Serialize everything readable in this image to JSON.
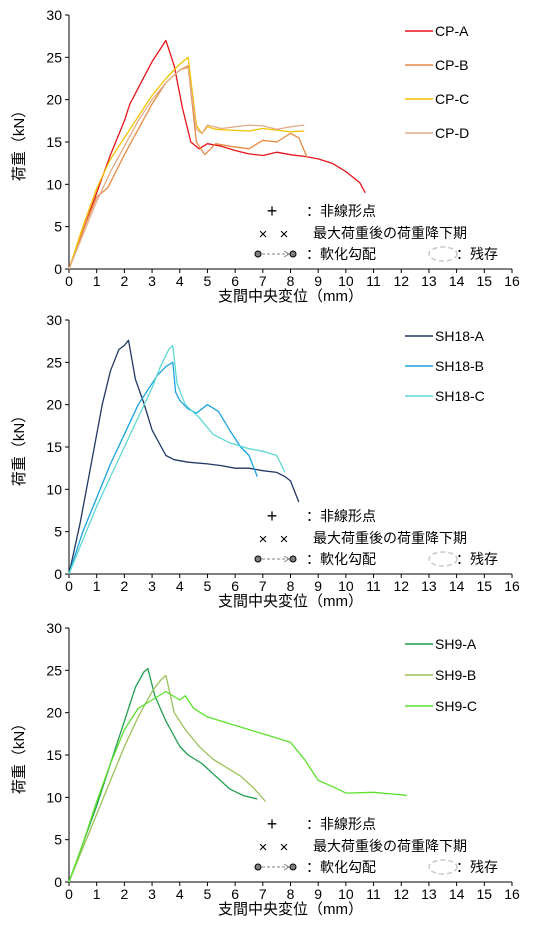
{
  "chart_data": [
    {
      "type": "line",
      "xlabel": "支間中央変位（mm）",
      "ylabel": "荷重（kN）",
      "xlim": [
        0,
        16
      ],
      "ylim": [
        0,
        30
      ],
      "xticks": [
        "0",
        "1",
        "2",
        "3",
        "4",
        "5",
        "6",
        "7",
        "8",
        "9",
        "10",
        "11",
        "12",
        "13",
        "14",
        "15",
        "16"
      ],
      "yticks": [
        "0",
        "5",
        "10",
        "15",
        "20",
        "25",
        "30"
      ],
      "grid": false,
      "legend_position": "top-right",
      "notes": {
        "nonlinear": "：非線形点",
        "max_load": "最大荷重後の荷重降下期",
        "softening": "：軟化勾配",
        "residual": "：残存"
      },
      "series": [
        {
          "name": "CP-A",
          "color": "#e8141b",
          "x": [
            0,
            0.5,
            1,
            1.5,
            2,
            2.2,
            2.6,
            3,
            3.3,
            3.5,
            3.8,
            4.1,
            4.4,
            4.7,
            5,
            5.5,
            6,
            6.5,
            7,
            7.5,
            8,
            8.5,
            9,
            9.5,
            10,
            10.5,
            10.7
          ],
          "y": [
            0,
            4.5,
            9,
            13.5,
            17.5,
            19.5,
            22,
            24.5,
            26,
            27,
            24,
            19,
            15,
            14.2,
            14.8,
            14.5,
            14,
            13.6,
            13.4,
            13.8,
            13.5,
            13.3,
            13,
            12.5,
            11.5,
            10.2,
            9
          ]
        },
        {
          "name": "CP-B",
          "color": "#e68a45",
          "x": [
            0,
            0.5,
            1,
            1.4,
            2,
            2.5,
            3,
            3.5,
            4,
            4.3,
            4.6,
            4.9,
            5.3,
            5.8,
            6.5,
            7,
            7.5,
            8,
            8.3,
            8.6
          ],
          "y": [
            0,
            4.5,
            8.5,
            9.6,
            13.5,
            16.5,
            19.5,
            22,
            23.5,
            24,
            15,
            13.5,
            14.8,
            14.5,
            14.2,
            15.2,
            15,
            16,
            15.5,
            13.2
          ]
        },
        {
          "name": "CP-C",
          "color": "#f2c200",
          "x": [
            0,
            0.5,
            1,
            1.5,
            2,
            2.5,
            3,
            3.5,
            4,
            4.3,
            4.6,
            4.8,
            5,
            5.3,
            5.8,
            6.5,
            7,
            7.5,
            8,
            8.5
          ],
          "y": [
            0,
            5,
            9.5,
            13,
            15.5,
            18,
            20.5,
            22.5,
            24.2,
            25,
            17,
            16,
            16.8,
            16.5,
            16.4,
            16.3,
            16.6,
            16.4,
            16.2,
            16.3
          ]
        },
        {
          "name": "CP-D",
          "color": "#e2ac8a",
          "x": [
            0,
            0.5,
            1,
            1.5,
            2,
            2.5,
            3,
            3.5,
            4,
            4.3,
            4.6,
            4.8,
            5,
            5.5,
            6,
            6.5,
            7,
            7.5,
            8,
            8.5
          ],
          "y": [
            0,
            4,
            8,
            11.5,
            14.5,
            17.5,
            20,
            22,
            23.5,
            23.8,
            16.5,
            16,
            17,
            16.6,
            16.8,
            17,
            16.9,
            16.5,
            16.8,
            17
          ]
        },
        {
          "name": "SH18-A",
          "color": "#1f3864",
          "x": [
            0,
            0.4,
            0.8,
            1.2,
            1.5,
            1.8,
            2,
            2.15,
            2.4,
            2.7,
            3,
            3.5,
            3.8,
            4.3,
            5,
            5.5,
            6,
            6.5,
            7,
            7.5,
            7.8,
            8,
            8.3
          ],
          "y": [
            0,
            6,
            13,
            20,
            24,
            26.5,
            27,
            27.6,
            23,
            20.2,
            17,
            14,
            13.5,
            13.2,
            13,
            12.8,
            12.5,
            12.5,
            12.2,
            12,
            11.5,
            11,
            8.5
          ]
        },
        {
          "name": "SH18-B",
          "color": "#1aa3e0",
          "x": [
            0,
            0.5,
            1,
            1.5,
            2,
            2.5,
            2.9,
            3.2,
            3.5,
            3.75,
            3.85,
            4,
            4.3,
            4.6,
            5,
            5.4,
            5.8,
            6.2,
            6.5,
            6.8
          ],
          "y": [
            0,
            5,
            9,
            13,
            16.5,
            20,
            22,
            23.5,
            24.5,
            25,
            21.5,
            20.5,
            19.5,
            19,
            20,
            19.2,
            17,
            15,
            14,
            11.5
          ]
        },
        {
          "name": "SH18-C",
          "color": "#5fd9d2",
          "x": [
            0,
            0.5,
            1,
            1.5,
            2,
            2.5,
            3,
            3.3,
            3.6,
            3.75,
            3.9,
            4.2,
            4.7,
            5.2,
            5.8,
            6.5,
            7,
            7.5,
            7.8
          ],
          "y": [
            0,
            4,
            8,
            11.5,
            15,
            18.5,
            22,
            24.5,
            26.5,
            27,
            22.5,
            20,
            18.5,
            16.5,
            15.5,
            14.8,
            14.5,
            14,
            12
          ]
        },
        {
          "name": "SH9-A",
          "color": "#1e9e4f",
          "x": [
            0,
            0.5,
            1,
            1.5,
            2,
            2.4,
            2.7,
            2.85,
            3.1,
            3.5,
            4,
            4.3,
            4.8,
            5.3,
            5.8,
            6.3,
            6.8
          ],
          "y": [
            0,
            4.5,
            9,
            14,
            19,
            23,
            24.8,
            25.2,
            22,
            19,
            16,
            15,
            14,
            12.5,
            11,
            10.2,
            9.8
          ]
        },
        {
          "name": "SH9-B",
          "color": "#9bc25a",
          "x": [
            0,
            0.5,
            1,
            1.5,
            2,
            2.5,
            3,
            3.3,
            3.5,
            3.8,
            4.2,
            4.7,
            5.2,
            5.7,
            6.2,
            6.7,
            7.1
          ],
          "y": [
            0,
            4,
            8,
            12,
            16,
            19.5,
            22.5,
            23.8,
            24.4,
            20,
            18,
            16,
            14.5,
            13.5,
            12.5,
            11,
            9.5
          ]
        },
        {
          "name": "SH9-C",
          "color": "#5ce12e",
          "x": [
            0,
            0.5,
            1,
            1.5,
            2,
            2.5,
            3,
            3.5,
            4,
            4.2,
            4.5,
            5,
            6,
            7,
            8,
            8.5,
            9,
            9.5,
            10,
            11,
            12,
            12.2
          ],
          "y": [
            0,
            4.5,
            9.5,
            14,
            18,
            20.5,
            21.5,
            22.5,
            21.5,
            22,
            20.5,
            19.5,
            18.5,
            17.5,
            16.5,
            14.5,
            12,
            11.3,
            10.5,
            10.6,
            10.3,
            10.2
          ]
        }
      ]
    }
  ]
}
